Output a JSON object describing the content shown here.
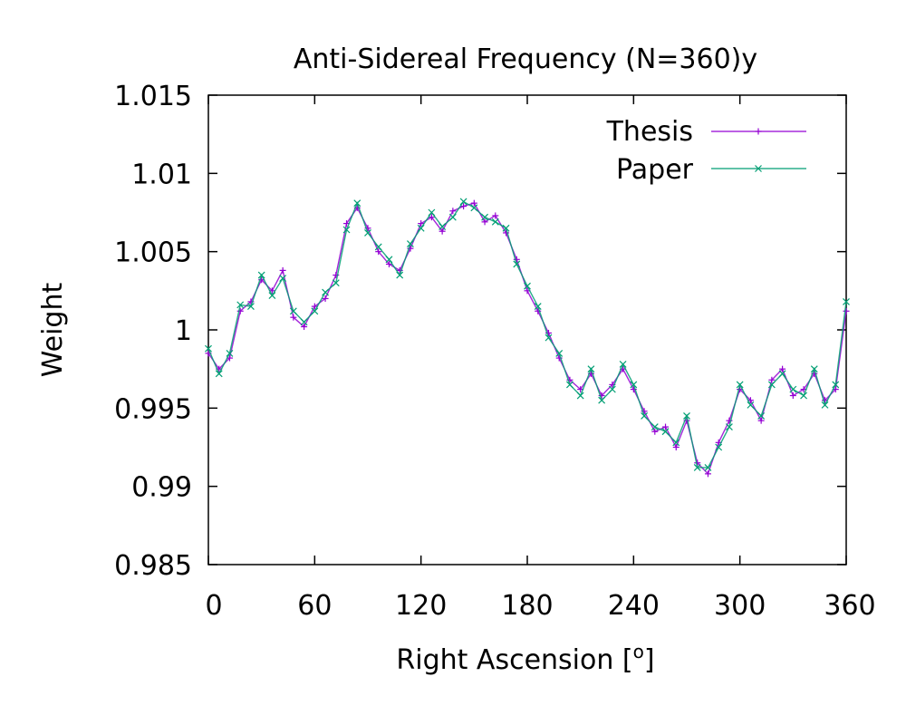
{
  "chart_data": {
    "type": "line",
    "title": "Anti-Sidereal Frequency (N=360)y",
    "xlabel": "Right Ascension [o]",
    "ylabel": "Weight",
    "xlim": [
      0,
      360
    ],
    "ylim": [
      0.985,
      1.015
    ],
    "xticks": [
      "0",
      "60",
      "120",
      "180",
      "240",
      "300",
      "360"
    ],
    "yticks": [
      "0.985",
      "0.99",
      "0.995",
      "1",
      "1.005",
      "1.01",
      "1.015"
    ],
    "grid": false,
    "legend_position": "top-right",
    "x": [
      0,
      6,
      12,
      18,
      24,
      30,
      36,
      42,
      48,
      54,
      60,
      66,
      72,
      78,
      84,
      90,
      96,
      102,
      108,
      114,
      120,
      126,
      132,
      138,
      144,
      150,
      156,
      162,
      168,
      174,
      180,
      186,
      192,
      198,
      204,
      210,
      216,
      222,
      228,
      234,
      240,
      246,
      252,
      258,
      264,
      270,
      276,
      282,
      288,
      294,
      300,
      306,
      312,
      318,
      324,
      330,
      336,
      342,
      348,
      354,
      360
    ],
    "series": [
      {
        "name": "Thesis",
        "color": "#9400d3",
        "marker": "plus",
        "values": [
          0.9985,
          0.9975,
          0.9982,
          1.0012,
          1.0018,
          1.0032,
          1.0025,
          1.0038,
          1.0008,
          1.0002,
          1.0015,
          1.002,
          1.0035,
          1.0068,
          1.0078,
          1.0065,
          1.005,
          1.0042,
          1.0038,
          1.0052,
          1.0068,
          1.0072,
          1.0063,
          1.0076,
          1.0079,
          1.0081,
          1.0069,
          1.0073,
          1.0062,
          1.0045,
          1.0025,
          1.0012,
          0.9998,
          0.9982,
          0.9968,
          0.9962,
          0.9972,
          0.9958,
          0.9965,
          0.9975,
          0.9962,
          0.9948,
          0.9935,
          0.9938,
          0.9925,
          0.9942,
          0.9915,
          0.9908,
          0.9928,
          0.9942,
          0.9962,
          0.9955,
          0.9942,
          0.9968,
          0.9975,
          0.9958,
          0.9962,
          0.9972,
          0.9955,
          0.9962,
          1.0012
        ]
      },
      {
        "name": "Paper",
        "color": "#009e73",
        "marker": "cross",
        "values": [
          0.9988,
          0.9972,
          0.9985,
          1.0016,
          1.0015,
          1.0035,
          1.0022,
          1.0033,
          1.0012,
          1.0005,
          1.0012,
          1.0024,
          1.003,
          1.0064,
          1.0081,
          1.0062,
          1.0053,
          1.0045,
          1.0035,
          1.0055,
          1.0065,
          1.0075,
          1.0066,
          1.0072,
          1.0082,
          1.0078,
          1.0072,
          1.0069,
          1.0065,
          1.0042,
          1.0028,
          1.0015,
          0.9995,
          0.9985,
          0.9965,
          0.9958,
          0.9975,
          0.9955,
          0.9962,
          0.9978,
          0.9965,
          0.9945,
          0.9938,
          0.9935,
          0.9928,
          0.9945,
          0.9912,
          0.9912,
          0.9925,
          0.9938,
          0.9965,
          0.9952,
          0.9945,
          0.9965,
          0.9972,
          0.9962,
          0.9958,
          0.9975,
          0.9952,
          0.9965,
          1.0018
        ]
      }
    ]
  }
}
